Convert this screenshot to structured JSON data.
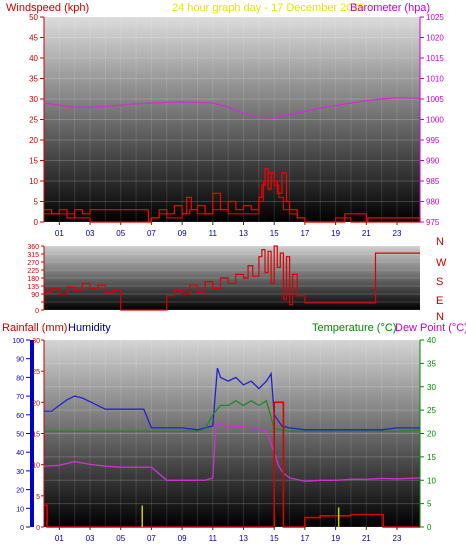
{
  "header": {
    "left_label": "Windspeed (kph)",
    "center_label": "24 hour graph day - 17 December 2025",
    "right_label": "Barometer (hpa)"
  },
  "bottom_header": {
    "rain_label": "Rainfall (mm)",
    "humidity_label": "Humidity",
    "temp_label": "Temperature (°C)",
    "dew_label": "Dew Point (°C)"
  },
  "colors": {
    "wind": "#dd0000",
    "gust": "#ff0000",
    "barometer": "#cc33cc",
    "humidity": "#2222cc",
    "temperature": "#228822",
    "dewpoint": "#cc33cc",
    "rainfall": "#dd0000",
    "rain_rate": "#cccc00",
    "left_axis": "#cc0000",
    "right_axis": "#cc00cc",
    "humidity_axis": "#0000cc",
    "temp_axis": "#008800",
    "compass": "#cc0000"
  },
  "chart_data": [
    {
      "type": "line",
      "name_key": "wind-barometer",
      "x_ticks": [
        "01",
        "03",
        "05",
        "07",
        "09",
        "11",
        "13",
        "15",
        "17",
        "19",
        "21",
        "23"
      ],
      "y_left": {
        "ticks": [
          0,
          5,
          10,
          15,
          20,
          25,
          30,
          35,
          40,
          45,
          50
        ],
        "range": [
          0,
          50
        ]
      },
      "y_right": {
        "ticks": [
          975,
          980,
          985,
          990,
          995,
          1000,
          1005,
          1010,
          1015,
          1020,
          1025
        ],
        "range": [
          975,
          1025
        ]
      },
      "x_range": [
        0,
        24.5
      ],
      "series": [
        {
          "key": "barometer",
          "x": [
            0,
            1,
            2,
            3,
            4,
            5,
            6,
            7,
            8,
            9,
            10,
            11,
            12,
            13,
            14,
            15,
            16,
            17,
            18,
            19,
            20,
            21,
            22,
            23,
            24.5
          ],
          "y": [
            1004,
            1003.5,
            1003,
            1003,
            1003.2,
            1003.5,
            1003.8,
            1004,
            1004.2,
            1004.3,
            1004.2,
            1004,
            1003,
            1001.5,
            1000.5,
            1000.4,
            1001.2,
            1002,
            1002.8,
            1003.4,
            1004,
            1004.6,
            1005,
            1005.3,
            1005.2
          ]
        },
        {
          "key": "wind",
          "x": [
            0,
            1,
            2,
            3,
            4,
            5,
            6,
            7,
            7.5,
            8,
            9,
            9.5,
            10,
            11,
            12,
            13,
            14,
            14.3,
            14.6,
            15,
            15.3,
            15.6,
            16,
            16.5,
            17,
            18,
            19,
            20,
            21,
            22,
            23,
            24.5
          ],
          "y": [
            2,
            2,
            1,
            0,
            0,
            0,
            0,
            1,
            2,
            1,
            2,
            3,
            2,
            3,
            2,
            2,
            5,
            10,
            12,
            9,
            6,
            3,
            2,
            1,
            0,
            0,
            1,
            0,
            0,
            0,
            0,
            0
          ]
        },
        {
          "key": "gust",
          "x": [
            0,
            0.5,
            1,
            1.5,
            2,
            2.5,
            3,
            6.8,
            7,
            7.5,
            8,
            8.5,
            9,
            9.3,
            9.6,
            10,
            10.5,
            11,
            11.5,
            12,
            12.5,
            13,
            13.5,
            14,
            14.2,
            14.4,
            14.6,
            14.8,
            15,
            15.2,
            15.5,
            15.8,
            16,
            16.5,
            17,
            19.5,
            19.6,
            21,
            21.1,
            24.5
          ],
          "y": [
            3,
            2,
            3,
            1,
            3,
            2,
            3,
            0,
            1,
            3,
            2,
            4,
            2,
            6,
            3,
            4,
            2,
            7,
            3,
            5,
            3,
            4,
            3,
            6,
            9,
            13,
            8,
            12,
            10,
            7,
            12,
            5,
            3,
            1,
            0,
            0,
            2,
            0,
            1,
            0
          ]
        }
      ]
    },
    {
      "type": "line",
      "name_key": "wind-direction",
      "x_range": [
        0,
        24.5
      ],
      "y_left": {
        "ticks": [
          0,
          45,
          90,
          135,
          180,
          225,
          270,
          315,
          360
        ],
        "range": [
          0,
          360
        ]
      },
      "compass_labels": [
        "N",
        "W",
        "S",
        "E",
        "N"
      ],
      "series": [
        {
          "key": "direction",
          "x": [
            0,
            0.5,
            1,
            1.5,
            2,
            2.5,
            3,
            3.5,
            4,
            4.5,
            5,
            5.5,
            6,
            7,
            8,
            8.5,
            9,
            9.5,
            10,
            10.5,
            11,
            11.5,
            12,
            12.5,
            13,
            13.3,
            13.6,
            14,
            14.2,
            14.4,
            14.6,
            14.8,
            15,
            15.2,
            15.4,
            15.6,
            15.8,
            16,
            16.2,
            16.5,
            17,
            18,
            19,
            20,
            21.5,
            21.6,
            22,
            23,
            24.5
          ],
          "y": [
            100,
            120,
            90,
            130,
            110,
            150,
            120,
            140,
            100,
            110,
            0,
            0,
            0,
            0,
            80,
            110,
            90,
            140,
            100,
            160,
            120,
            180,
            150,
            200,
            180,
            250,
            190,
            300,
            340,
            210,
            330,
            150,
            360,
            240,
            320,
            60,
            300,
            30,
            200,
            80,
            40,
            40,
            40,
            40,
            40,
            320,
            320,
            320,
            320
          ]
        }
      ]
    },
    {
      "type": "line",
      "name_key": "temp-humidity-rain",
      "x_ticks": [
        "01",
        "03",
        "05",
        "07",
        "09",
        "11",
        "13",
        "15",
        "17",
        "19",
        "21",
        "23"
      ],
      "x_range": [
        0,
        24.5
      ],
      "y_humidity": {
        "ticks": [
          0,
          10,
          20,
          30,
          40,
          50,
          60,
          70,
          80,
          90,
          100
        ],
        "range": [
          0,
          100
        ]
      },
      "y_rain": {
        "ticks": [
          0,
          5,
          10,
          15,
          20,
          25,
          30
        ],
        "range": [
          0,
          30
        ]
      },
      "y_temp": {
        "ticks": [
          0,
          5,
          10,
          15,
          20,
          25,
          30,
          35,
          40
        ],
        "range": [
          0,
          40
        ]
      },
      "series": [
        {
          "key": "humidity",
          "x": [
            0,
            0.5,
            1,
            1.5,
            2,
            2.5,
            3,
            3.5,
            4,
            5,
            6,
            6.5,
            7,
            8,
            9,
            10,
            11,
            11.3,
            11.5,
            12,
            12.5,
            13,
            13.5,
            14,
            14.5,
            14.8,
            15,
            15.5,
            16,
            17,
            18,
            19,
            20,
            21,
            22,
            23,
            24.5
          ],
          "y": [
            62,
            62,
            65,
            68,
            70,
            69,
            67,
            65,
            63,
            63,
            63,
            63,
            53,
            53,
            53,
            52,
            54,
            85,
            80,
            78,
            80,
            76,
            78,
            74,
            78,
            82,
            60,
            54,
            53,
            52,
            52,
            52,
            52,
            52,
            52,
            53,
            53
          ]
        },
        {
          "key": "temperature",
          "x": [
            0,
            1,
            2,
            3,
            4,
            5,
            6,
            7,
            8,
            9,
            10,
            10.5,
            11,
            11.5,
            12,
            12.5,
            13,
            13.5,
            14,
            14.5,
            15,
            15.5,
            16,
            17,
            18,
            19,
            20,
            21,
            22,
            23,
            24.5
          ],
          "y": [
            20.5,
            20.5,
            20.5,
            20.5,
            20.5,
            20.5,
            20.5,
            20.5,
            20.5,
            20.5,
            20.5,
            21,
            24,
            26,
            26,
            27,
            26,
            27,
            26,
            27,
            21,
            20.8,
            20.5,
            20.5,
            20.5,
            20.5,
            20.5,
            20.5,
            20.5,
            20.5,
            20.7
          ]
        },
        {
          "key": "dewpoint",
          "x": [
            0,
            1,
            2,
            3,
            4,
            5,
            6,
            7,
            8,
            9,
            10,
            10.5,
            11,
            11.2,
            11.5,
            12,
            13,
            14,
            14.5,
            15,
            15.3,
            15.6,
            16,
            17,
            18,
            19,
            20,
            21,
            22,
            23,
            24.5
          ],
          "y": [
            13,
            13.2,
            14,
            13.4,
            13,
            12.8,
            12.8,
            12.8,
            10,
            10,
            10,
            10,
            10.5,
            22,
            22,
            21.5,
            21.5,
            21,
            20.5,
            16,
            13,
            11.5,
            10.5,
            9.8,
            10,
            10,
            10.2,
            10.2,
            10.4,
            10.3,
            10.5
          ]
        },
        {
          "key": "rainfall",
          "x": [
            0,
            0.1,
            0.2,
            1,
            4,
            8,
            12,
            14,
            14.8,
            15,
            15.1,
            15.5,
            15.6,
            16,
            16.5,
            17,
            18,
            19,
            20,
            21,
            21.5,
            22,
            22.1,
            24.5
          ],
          "y": [
            3.5,
            3.5,
            0,
            0,
            0,
            0,
            0,
            0,
            0,
            20,
            20,
            20,
            0,
            0,
            0,
            1.5,
            1.8,
            1.8,
            2,
            2,
            2,
            2,
            0,
            0
          ]
        },
        {
          "key": "rain_rate",
          "x": [
            6.4,
            19.2
          ],
          "y": [
            2.8,
            2.5
          ]
        }
      ]
    }
  ]
}
